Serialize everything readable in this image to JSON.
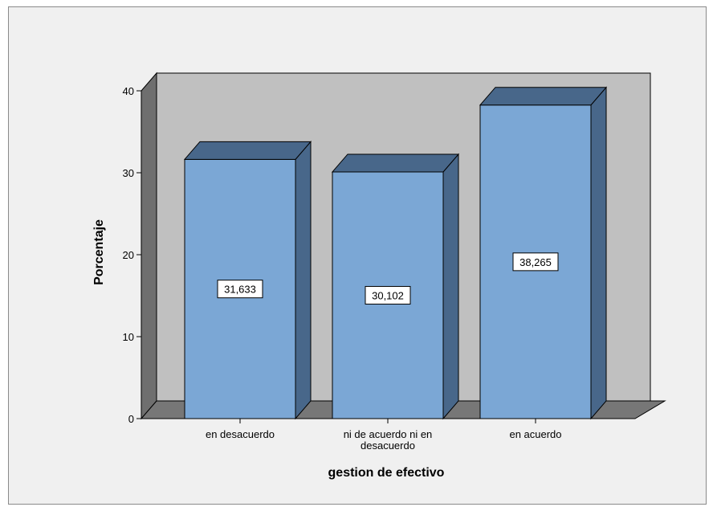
{
  "chart_data": {
    "type": "bar",
    "style": "3d",
    "categories": [
      [
        "en desacuerdo"
      ],
      [
        "ni de acuerdo ni en",
        "desacuerdo"
      ],
      [
        "en acuerdo"
      ]
    ],
    "values": [
      31.633,
      30.102,
      38.265
    ],
    "data_labels": [
      "31,633",
      "30,102",
      "38,265"
    ],
    "xlabel": "gestion de efectivo",
    "ylabel": "Porcentaje",
    "ylim": [
      0,
      40
    ],
    "yticks": [
      "0",
      "10",
      "20",
      "30",
      "40"
    ],
    "grid": false,
    "legend": "none",
    "colors": {
      "bar_front": "#7ba7d5",
      "bar_side": "#48678a",
      "bar_top": "#48678a",
      "back_wall": "#c0c0c0",
      "side_wall": "#6f6f6f",
      "floor": "#777777",
      "frame_bg": "#f0f0f0"
    }
  }
}
